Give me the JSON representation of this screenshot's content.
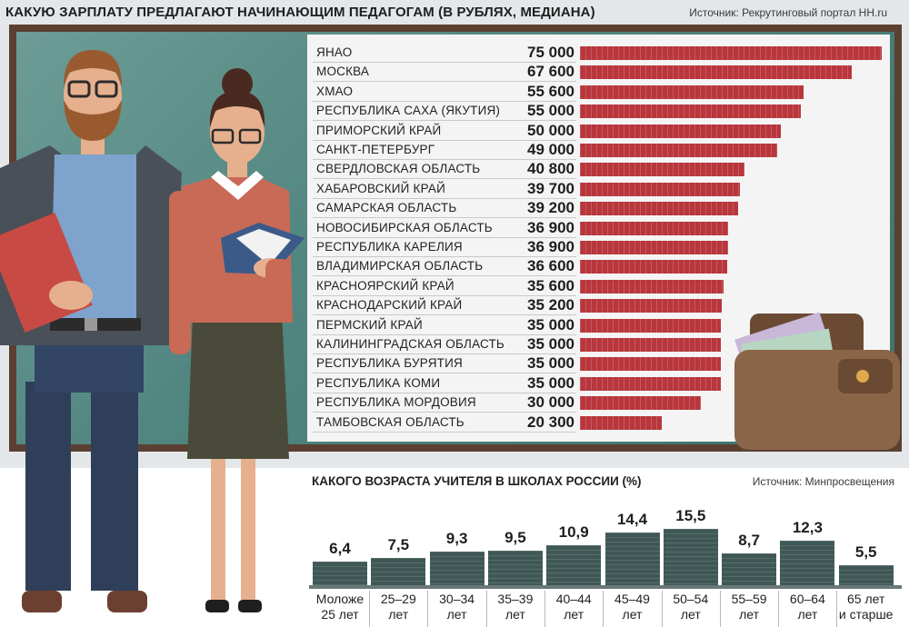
{
  "header": {
    "title": "КАКУЮ ЗАРПЛАТУ ПРЕДЛАГАЮТ НАЧИНАЮЩИМ ПЕДАГОГАМ (В РУБЛЯХ, МЕДИАНА)",
    "source": "Источник: Рекрутинговый портал HH.ru"
  },
  "age_section": {
    "title": "КАКОГО ВОЗРАСТА УЧИТЕЛЯ В ШКОЛАХ РОССИИ (%)",
    "source": "Источник: Минпросвещения"
  },
  "colors": {
    "salary_bar": "#b8363c",
    "age_bar": "#3f5856",
    "board": "#528680",
    "frame": "#5b4031"
  },
  "chart_data": [
    {
      "type": "bar",
      "orientation": "horizontal",
      "title": "КАКУЮ ЗАРПЛАТУ ПРЕДЛАГАЮТ НАЧИНАЮЩИМ ПЕДАГОГАМ (В РУБЛЯХ, МЕДИАНА)",
      "categories": [
        "ЯНАО",
        "МОСКВА",
        "ХМАО",
        "РЕСПУБЛИКА САХА (ЯКУТИЯ)",
        "ПРИМОРСКИЙ КРАЙ",
        "САНКТ-ПЕТЕРБУРГ",
        "СВЕРДЛОВСКАЯ ОБЛАСТЬ",
        "ХАБАРОВСКИЙ КРАЙ",
        "САМАРСКАЯ ОБЛАСТЬ",
        "НОВОСИБИРСКАЯ ОБЛАСТЬ",
        "РЕСПУБЛИКА КАРЕЛИЯ",
        "ВЛАДИМИРСКАЯ ОБЛАСТЬ",
        "КРАСНОЯРСКИЙ КРАЙ",
        "КРАСНОДАРСКИЙ КРАЙ",
        "ПЕРМСКИЙ КРАЙ",
        "КАЛИНИНГРАДСКАЯ ОБЛАСТЬ",
        "РЕСПУБЛИКА БУРЯТИЯ",
        "РЕСПУБЛИКА КОМИ",
        "РЕСПУБЛИКА МОРДОВИЯ",
        "ТАМБОВСКАЯ ОБЛАСТЬ"
      ],
      "values": [
        75000,
        67600,
        55600,
        55000,
        50000,
        49000,
        40800,
        39700,
        39200,
        36900,
        36900,
        36600,
        35600,
        35200,
        35000,
        35000,
        35000,
        35000,
        30000,
        20300
      ],
      "value_labels": [
        "75 000",
        "67 600",
        "55 600",
        "55 000",
        "50 000",
        "49 000",
        "40 800",
        "39 700",
        "39 200",
        "36 900",
        "36 900",
        "36 600",
        "35 600",
        "35 200",
        "35 000",
        "35 000",
        "35 000",
        "35 000",
        "30 000",
        "20 300"
      ],
      "xlim": [
        0,
        75000
      ]
    },
    {
      "type": "bar",
      "title": "КАКОГО ВОЗРАСТА УЧИТЕЛЯ В ШКОЛАХ РОССИИ (%)",
      "categories": [
        [
          "Моложе",
          "25 лет"
        ],
        [
          "25–29",
          "лет"
        ],
        [
          "30–34",
          "лет"
        ],
        [
          "35–39",
          "лет"
        ],
        [
          "40–44",
          "лет"
        ],
        [
          "45–49",
          "лет"
        ],
        [
          "50–54",
          "лет"
        ],
        [
          "55–59",
          "лет"
        ],
        [
          "60–64",
          "лет"
        ],
        [
          "65 лет",
          "и старше"
        ]
      ],
      "values": [
        6.4,
        7.5,
        9.3,
        9.5,
        10.9,
        14.4,
        15.5,
        8.7,
        12.3,
        5.5
      ],
      "value_labels": [
        "6,4",
        "7,5",
        "9,3",
        "9,5",
        "10,9",
        "14,4",
        "15,5",
        "8,7",
        "12,3",
        "5,5"
      ],
      "ylim": [
        0,
        15.5
      ]
    }
  ]
}
